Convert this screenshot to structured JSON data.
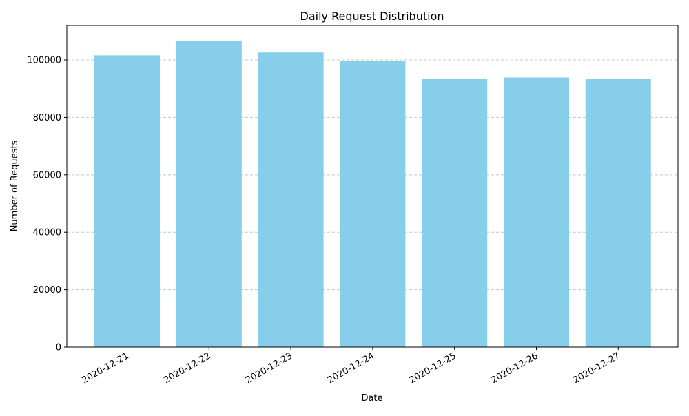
{
  "chart_data": {
    "type": "bar",
    "title": "Daily Request Distribution",
    "xlabel": "Date",
    "ylabel": "Number of Requests",
    "categories": [
      "2020-12-21",
      "2020-12-22",
      "2020-12-23",
      "2020-12-24",
      "2020-12-25",
      "2020-12-26",
      "2020-12-27"
    ],
    "values": [
      101600,
      106600,
      102600,
      99700,
      93500,
      93900,
      93300
    ],
    "ylim": [
      0,
      112000
    ],
    "yticks": [
      "0",
      "20000",
      "40000",
      "60000",
      "80000",
      "100000"
    ],
    "grid": "y-dashed",
    "bar_color": "#87ceeb",
    "grid_color": "#c8c8c8"
  }
}
